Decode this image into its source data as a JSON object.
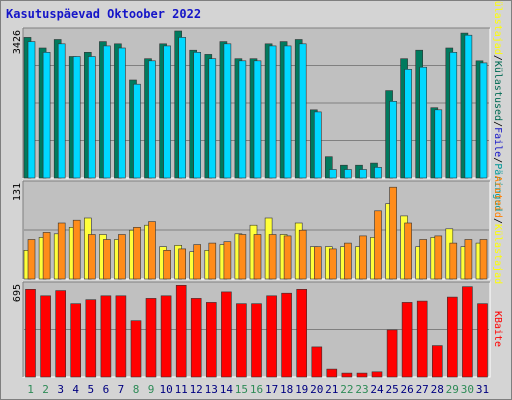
{
  "header": {
    "title": "Kasutuspäevad Oktoober 2022"
  },
  "chart_data": [
    {
      "type": "bar",
      "panel": "top",
      "max_label": "3426",
      "ylim": [
        0,
        3426
      ],
      "categories": [
        "1",
        "2",
        "3",
        "4",
        "5",
        "6",
        "7",
        "8",
        "9",
        "10",
        "11",
        "12",
        "13",
        "14",
        "15",
        "16",
        "17",
        "18",
        "19",
        "20",
        "21",
        "22",
        "23",
        "24",
        "25",
        "26",
        "27",
        "28",
        "29",
        "30",
        "31"
      ],
      "weekend_days": [
        "1",
        "2",
        "8",
        "9",
        "15",
        "16",
        "22",
        "23",
        "29",
        "30"
      ],
      "legend": [
        "Külastajad",
        "Külastused",
        "Faile",
        "Päringud"
      ],
      "legend_separator": "/",
      "legend_colors": [
        "#ffff00",
        "#006b54",
        "#1515c8",
        "#009999"
      ],
      "series": [
        {
          "name": "Külastused",
          "color": "#007a5e",
          "values": [
            3300,
            3050,
            3250,
            2850,
            2950,
            3200,
            3150,
            2300,
            2800,
            3150,
            3450,
            3000,
            2900,
            3200,
            2800,
            2800,
            3150,
            3200,
            3250,
            1600,
            500,
            300,
            300,
            350,
            2050,
            2800,
            3000,
            1650,
            3050,
            3400,
            2750
          ]
        },
        {
          "name": "Päringud",
          "color": "#00d8ff",
          "values": [
            3200,
            2950,
            3150,
            2850,
            2850,
            3100,
            3050,
            2200,
            2750,
            3100,
            3300,
            2950,
            2800,
            3150,
            2750,
            2750,
            3100,
            3100,
            3150,
            1550,
            200,
            200,
            200,
            250,
            1800,
            2550,
            2600,
            1600,
            2950,
            3350,
            2700
          ]
        }
      ]
    },
    {
      "type": "bar",
      "panel": "middle",
      "max_label": "131",
      "ylim": [
        0,
        131
      ],
      "categories": [
        "1",
        "2",
        "3",
        "4",
        "5",
        "6",
        "7",
        "8",
        "9",
        "10",
        "11",
        "12",
        "13",
        "14",
        "15",
        "16",
        "17",
        "18",
        "19",
        "20",
        "21",
        "22",
        "23",
        "24",
        "25",
        "26",
        "27",
        "28",
        "29",
        "30",
        "31"
      ],
      "legend": [
        "Aruteid",
        "Külastajad"
      ],
      "legend_separator": "/",
      "legend_colors": [
        "#ff8000",
        "#ffff00"
      ],
      "series": [
        {
          "name": "Külastajad",
          "color": "#ffff3a",
          "values": [
            40,
            58,
            63,
            72,
            85,
            62,
            55,
            68,
            75,
            45,
            47,
            38,
            40,
            48,
            63,
            75,
            85,
            62,
            78,
            45,
            45,
            45,
            45,
            58,
            105,
            88,
            45,
            58,
            70,
            45,
            50
          ]
        },
        {
          "name": "Aruteid",
          "color": "#ff8c1a",
          "values": [
            55,
            65,
            78,
            82,
            62,
            55,
            62,
            72,
            80,
            40,
            42,
            48,
            50,
            52,
            62,
            62,
            62,
            60,
            68,
            45,
            42,
            50,
            60,
            95,
            128,
            78,
            55,
            60,
            50,
            55,
            55
          ]
        }
      ]
    },
    {
      "type": "bar",
      "panel": "bottom",
      "max_label": "695",
      "ylim": [
        0,
        695
      ],
      "categories": [
        "1",
        "2",
        "3",
        "4",
        "5",
        "6",
        "7",
        "8",
        "9",
        "10",
        "11",
        "12",
        "13",
        "14",
        "15",
        "16",
        "17",
        "18",
        "19",
        "20",
        "21",
        "22",
        "23",
        "24",
        "25",
        "26",
        "27",
        "28",
        "29",
        "30",
        "31"
      ],
      "legend": [
        "KBaite"
      ],
      "legend_colors": [
        "#ff0000"
      ],
      "series": [
        {
          "name": "KBaite",
          "color": "#ff0000",
          "values": [
            670,
            620,
            660,
            560,
            590,
            620,
            620,
            430,
            600,
            620,
            700,
            600,
            570,
            650,
            560,
            560,
            620,
            640,
            670,
            230,
            60,
            30,
            30,
            40,
            360,
            570,
            580,
            240,
            610,
            690,
            560
          ]
        }
      ]
    }
  ]
}
